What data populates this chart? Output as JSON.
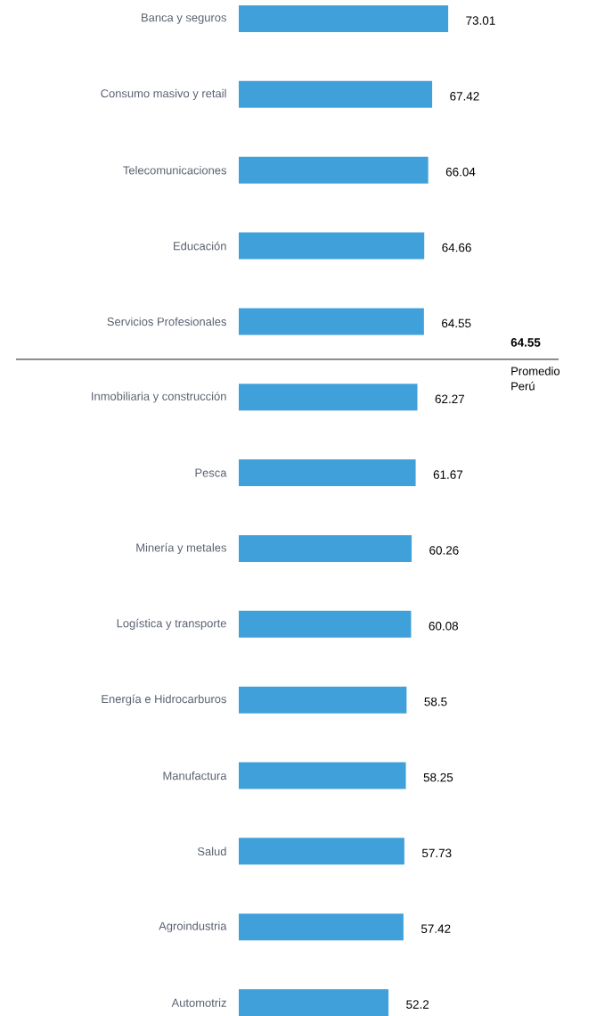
{
  "chart_data": {
    "type": "bar",
    "orientation": "horizontal",
    "color": "#3fa0da",
    "data_labels": true,
    "categories": [
      "Banca y seguros",
      "Consumo masivo y retail",
      "Telecomunicaciones",
      "Educación",
      "Servicios Profesionales",
      "Inmobiliaria y construcción",
      "Pesca",
      "Minería y metales",
      "Logística y transporte",
      "Energía e Hidrocarburos",
      "Manufactura",
      "Salud",
      "Agroindustria",
      "Automotriz"
    ],
    "values": [
      73.01,
      67.42,
      66.04,
      64.66,
      64.55,
      62.27,
      61.67,
      60.26,
      60.08,
      58.5,
      58.25,
      57.73,
      57.42,
      52.2
    ],
    "ref_lines": [
      {
        "axis": "y",
        "value": "Servicios Profesionales",
        "label": "Promedio Perú",
        "color": "#1a1a1a"
      }
    ],
    "annotations": [
      "64.55"
    ]
  }
}
